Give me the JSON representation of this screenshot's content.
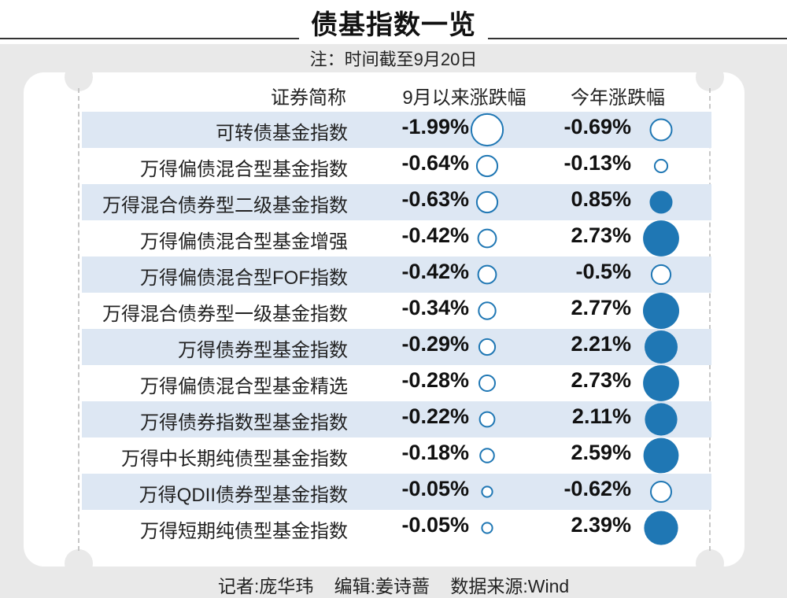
{
  "title": "债基指数一览",
  "note": "注：时间截至9月20日",
  "footer": {
    "reporter": "记者:庞华玮",
    "editor": "编辑:姜诗蔷",
    "source": "数据来源:Wind"
  },
  "colors": {
    "positive_fill": "#1f77b4",
    "negative_stroke": "#1f77b4",
    "row_shade": "#dde7f3",
    "background": "#e9e9e9"
  },
  "chart_data": {
    "type": "table",
    "columns": [
      "证券简称",
      "9月以来涨跌幅",
      "今年涨跌幅"
    ],
    "encoding": "circle size shows magnitude; hollow circle = negative, filled circle = positive",
    "rows": [
      {
        "name": "可转债基金指数",
        "sep_label": "-1.99%",
        "sep": -1.99,
        "ytd_label": "-0.69%",
        "ytd": -0.69
      },
      {
        "name": "万得偏债混合型基金指数",
        "sep_label": "-0.64%",
        "sep": -0.64,
        "ytd_label": "-0.13%",
        "ytd": -0.13
      },
      {
        "name": "万得混合债券型二级基金指数",
        "sep_label": "-0.63%",
        "sep": -0.63,
        "ytd_label": "0.85%",
        "ytd": 0.85
      },
      {
        "name": "万得偏债混合型基金增强",
        "sep_label": "-0.42%",
        "sep": -0.42,
        "ytd_label": "2.73%",
        "ytd": 2.73
      },
      {
        "name": "万得偏债混合型FOF指数",
        "sep_label": "-0.42%",
        "sep": -0.42,
        "ytd_label": "-0.5%",
        "ytd": -0.5
      },
      {
        "name": "万得混合债券型一级基金指数",
        "sep_label": "-0.34%",
        "sep": -0.34,
        "ytd_label": "2.77%",
        "ytd": 2.77
      },
      {
        "name": "万得债券型基金指数",
        "sep_label": "-0.29%",
        "sep": -0.29,
        "ytd_label": "2.21%",
        "ytd": 2.21
      },
      {
        "name": "万得偏债混合型基金精选",
        "sep_label": "-0.28%",
        "sep": -0.28,
        "ytd_label": "2.73%",
        "ytd": 2.73
      },
      {
        "name": "万得债券指数型基金指数",
        "sep_label": "-0.22%",
        "sep": -0.22,
        "ytd_label": "2.11%",
        "ytd": 2.11
      },
      {
        "name": "万得中长期纯债型基金指数",
        "sep_label": "-0.18%",
        "sep": -0.18,
        "ytd_label": "2.59%",
        "ytd": 2.59
      },
      {
        "name": "万得QDII债券型基金指数",
        "sep_label": "-0.05%",
        "sep": -0.05,
        "ytd_label": "-0.62%",
        "ytd": -0.62
      },
      {
        "name": "万得短期纯债型基金指数",
        "sep_label": "-0.05%",
        "sep": -0.05,
        "ytd_label": "2.39%",
        "ytd": 2.39
      }
    ]
  }
}
